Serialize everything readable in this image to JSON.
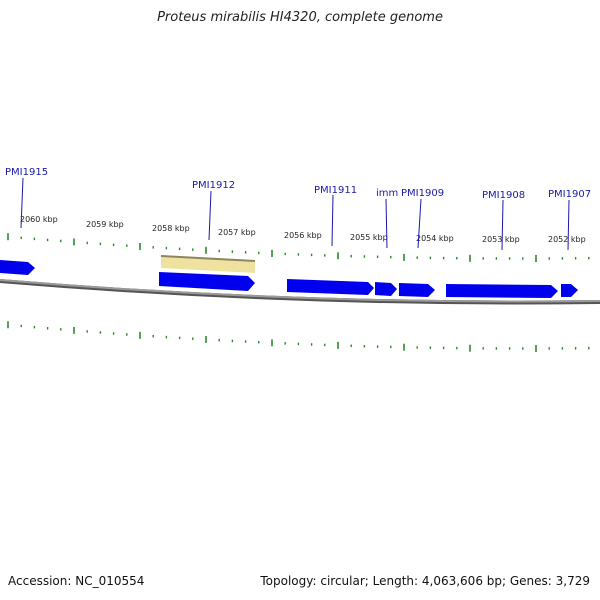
{
  "title": "Proteus mirabilis HI4320, complete genome",
  "accession": "Accession: NC_010554",
  "summary": "Topology: circular; Length: 4,063,606 bp; Genes: 3,729",
  "colors": {
    "gene": "#0000ee",
    "highlight": "#f0e4a0",
    "backbone": "#888888",
    "tick": "#2a8a2a",
    "label": "#1a1aa8"
  },
  "kbp_labels": [
    "2060 kbp",
    "2059 kbp",
    "2058 kbp",
    "2057 kbp",
    "2056 kbp",
    "2055 kbp",
    "2054 kbp",
    "2053 kbp",
    "2052 kbp"
  ],
  "gene_labels": [
    "PMI1915",
    "PMI1912",
    "PMI1911",
    "imm",
    "PMI1909",
    "PMI1908",
    "PMI1907"
  ]
}
